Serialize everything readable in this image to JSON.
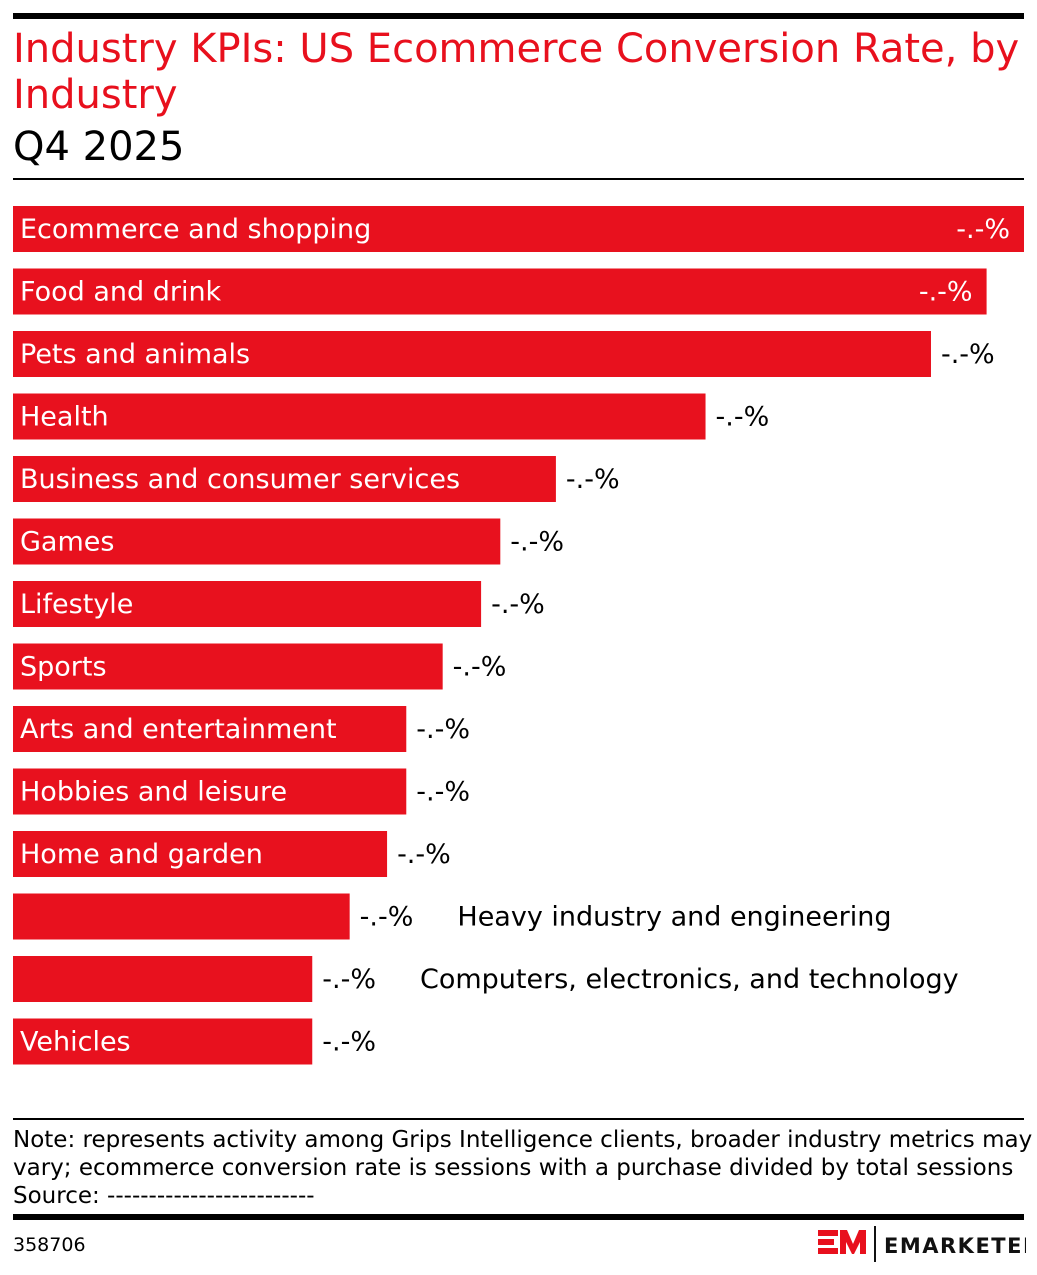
{
  "title_line1": "Industry KPIs: US Ecommerce Conversion Rate, by",
  "title_line2": "Industry",
  "subtitle": "Q4 2025",
  "colors": {
    "accent": "#e8101d",
    "bar": "#e8111e"
  },
  "chart_data": {
    "type": "bar",
    "orientation": "horizontal",
    "title": "Industry KPIs: US Ecommerce Conversion Rate, by Industry",
    "subtitle": "Q4 2025",
    "categories": [
      "Ecommerce and shopping",
      "Food and drink",
      "Pets and animals",
      "Health",
      "Business and consumer services",
      "Games",
      "Lifestyle",
      "Sports",
      "Arts and entertainment",
      "Hobbies and leisure",
      "Home and garden",
      "Heavy industry and engineering",
      "Computers, electronics, and technology",
      "Vehicles"
    ],
    "values_relative_to_max": [
      1.0,
      0.963,
      0.908,
      0.685,
      0.537,
      0.482,
      0.463,
      0.425,
      0.389,
      0.389,
      0.37,
      0.333,
      0.296,
      0.296
    ],
    "data_labels": [
      "-.-%",
      "-.-%",
      "-.-%",
      "-.-%",
      "-.-%",
      "-.-%",
      "-.-%",
      "-.-%",
      "-.-%",
      "-.-%",
      "-.-%",
      "-.-%",
      "-.-%",
      "-.-%"
    ],
    "grid": false,
    "legend": "none"
  },
  "note_line1": "Note: represents activity among Grips Intelligence clients, broader industry metrics may",
  "note_line2": "vary; ecommerce conversion rate is sessions with a purchase divided by total sessions",
  "source": "Source: -------------------------",
  "chart_id": "358706",
  "logo_text": "EMARKETER"
}
